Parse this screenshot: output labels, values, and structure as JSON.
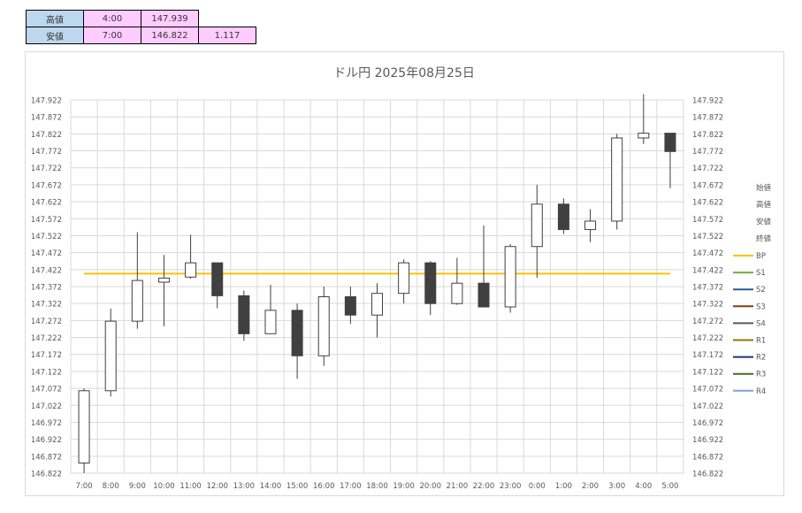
{
  "summary": {
    "high": {
      "label": "高値",
      "time": "4:00",
      "value": "147.939"
    },
    "low": {
      "label": "安値",
      "time": "7:00",
      "value": "146.822",
      "range": "1.117"
    }
  },
  "chart_data": {
    "type": "candlestick",
    "title": "ドル円 2025年08月25日",
    "x_labels": [
      "7:00",
      "8:00",
      "9:00",
      "10:00",
      "11:00",
      "12:00",
      "13:00",
      "14:00",
      "15:00",
      "16:00",
      "17:00",
      "18:00",
      "19:00",
      "20:00",
      "21:00",
      "22:00",
      "23:00",
      "0:00",
      "1:00",
      "2:00",
      "3:00",
      "4:00",
      "5:00"
    ],
    "y_ticks": [
      "146.822",
      "146.872",
      "146.922",
      "146.972",
      "147.022",
      "147.072",
      "147.122",
      "147.172",
      "147.222",
      "147.272",
      "147.322",
      "147.372",
      "147.422",
      "147.472",
      "147.522",
      "147.572",
      "147.622",
      "147.672",
      "147.722",
      "147.772",
      "147.822",
      "147.872",
      "147.922"
    ],
    "ylim": [
      146.822,
      147.922
    ],
    "grid": true,
    "candles": [
      {
        "time": "7:00",
        "open": 146.852,
        "high": 147.072,
        "low": 146.822,
        "close": 147.065
      },
      {
        "time": "8:00",
        "open": 147.065,
        "high": 147.307,
        "low": 147.048,
        "close": 147.27
      },
      {
        "time": "9:00",
        "open": 147.27,
        "high": 147.532,
        "low": 147.248,
        "close": 147.39
      },
      {
        "time": "10:00",
        "open": 147.385,
        "high": 147.465,
        "low": 147.255,
        "close": 147.397
      },
      {
        "time": "11:00",
        "open": 147.4,
        "high": 147.525,
        "low": 147.395,
        "close": 147.442
      },
      {
        "time": "12:00",
        "open": 147.442,
        "high": 147.442,
        "low": 147.308,
        "close": 147.345
      },
      {
        "time": "13:00",
        "open": 147.345,
        "high": 147.36,
        "low": 147.212,
        "close": 147.233
      },
      {
        "time": "14:00",
        "open": 147.233,
        "high": 147.377,
        "low": 147.233,
        "close": 147.302
      },
      {
        "time": "15:00",
        "open": 147.302,
        "high": 147.322,
        "low": 147.1,
        "close": 147.168
      },
      {
        "time": "16:00",
        "open": 147.168,
        "high": 147.372,
        "low": 147.138,
        "close": 147.342
      },
      {
        "time": "17:00",
        "open": 147.342,
        "high": 147.372,
        "low": 147.262,
        "close": 147.288
      },
      {
        "time": "18:00",
        "open": 147.288,
        "high": 147.382,
        "low": 147.222,
        "close": 147.352
      },
      {
        "time": "19:00",
        "open": 147.352,
        "high": 147.452,
        "low": 147.322,
        "close": 147.442
      },
      {
        "time": "20:00",
        "open": 147.442,
        "high": 147.447,
        "low": 147.288,
        "close": 147.322
      },
      {
        "time": "21:00",
        "open": 147.322,
        "high": 147.457,
        "low": 147.318,
        "close": 147.382
      },
      {
        "time": "22:00",
        "open": 147.382,
        "high": 147.552,
        "low": 147.312,
        "close": 147.312
      },
      {
        "time": "23:00",
        "open": 147.312,
        "high": 147.497,
        "low": 147.295,
        "close": 147.49
      },
      {
        "time": "0:00",
        "open": 147.49,
        "high": 147.672,
        "low": 147.398,
        "close": 147.615
      },
      {
        "time": "1:00",
        "open": 147.615,
        "high": 147.632,
        "low": 147.527,
        "close": 147.54
      },
      {
        "time": "2:00",
        "open": 147.54,
        "high": 147.6,
        "low": 147.503,
        "close": 147.565
      },
      {
        "time": "3:00",
        "open": 147.565,
        "high": 147.822,
        "low": 147.54,
        "close": 147.81
      },
      {
        "time": "4:00",
        "open": 147.81,
        "high": 147.939,
        "low": 147.792,
        "close": 147.824
      },
      {
        "time": "5:00",
        "open": 147.824,
        "high": 147.824,
        "low": 147.662,
        "close": 147.77
      }
    ],
    "bp_value": 147.41,
    "colors": {
      "up_fill": "#ffffff",
      "down_fill": "#404040",
      "candle_stroke": "#404040",
      "bp_line": "#ffc000",
      "grid": "#d9d9d9"
    },
    "legend": {
      "position": "right",
      "text_items": [
        "始値",
        "高値",
        "安値",
        "終値"
      ],
      "line_items": [
        {
          "name": "BP",
          "color": "#ffc000"
        },
        {
          "name": "S1",
          "color": "#70ad47"
        },
        {
          "name": "S2",
          "color": "#255e91"
        },
        {
          "name": "S3",
          "color": "#843c0c"
        },
        {
          "name": "S4",
          "color": "#595959"
        },
        {
          "name": "R1",
          "color": "#997300"
        },
        {
          "name": "R2",
          "color": "#203864"
        },
        {
          "name": "R3",
          "color": "#43682b"
        },
        {
          "name": "R4",
          "color": "#7aa6d6"
        }
      ]
    }
  }
}
